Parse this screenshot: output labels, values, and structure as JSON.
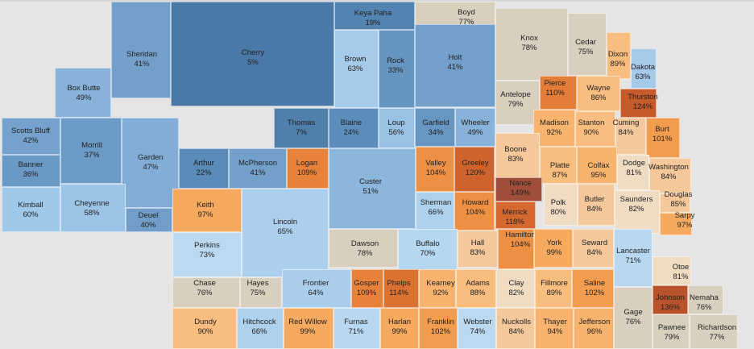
{
  "colors": {
    "b5": "#4a78a7",
    "b7": "#507fab",
    "b19": "#5383b0",
    "b22": "#5a8ab8",
    "b24": "#5d8dba",
    "b33": "#6695c2",
    "b34": "#6896c3",
    "b36": "#6b99c5",
    "b37": "#6d9bc7",
    "b40": "#709ec9",
    "b41": "#73a0cb",
    "b42": "#75a2cc",
    "b47": "#82add6",
    "b49": "#88b2da",
    "b51": "#8db6dc",
    "b56": "#98c1e3",
    "b58": "#9cc4e6",
    "b60": "#a0c8e8",
    "b63": "#a6cbea",
    "b64": "#a9cdeb",
    "b65": "#abcfec",
    "b66": "#aed1ed",
    "b70": "#b6d7f0",
    "b71": "#b8d8f1",
    "b73": "#bbdaf2",
    "g": "#d8cfbf",
    "o80": "#efdcc2",
    "o8384": "#f5c89b",
    "o8690": "#f8bd7f",
    "o9296": "#f8b46f",
    "o9799": "#f6aa5f",
    "o100": "#f29c4f",
    "o104": "#ee9044",
    "o109": "#e8823a",
    "o110": "#e47d38",
    "o114": "#dc7232",
    "o118": "#d4682f",
    "o120": "#cf632d",
    "o124": "#c65a2a",
    "o136": "#b9532b",
    "o149": "#a04d3a"
  },
  "counties": [
    {
      "name": "Keya Paha",
      "pct": "19%",
      "fill": "b19"
    },
    {
      "name": "Boyd",
      "pct": "77%",
      "fill": "g"
    },
    {
      "name": "Sheridan",
      "pct": "41%",
      "fill": "b41"
    },
    {
      "name": "Cherry",
      "pct": "5%",
      "fill": "b5"
    },
    {
      "name": "Brown",
      "pct": "63%",
      "fill": "b63"
    },
    {
      "name": "Rock",
      "pct": "33%",
      "fill": "b33"
    },
    {
      "name": "Holt",
      "pct": "41%",
      "fill": "b41"
    },
    {
      "name": "Knox",
      "pct": "78%",
      "fill": "g"
    },
    {
      "name": "Cedar",
      "pct": "75%",
      "fill": "g"
    },
    {
      "name": "Dixon",
      "pct": "89%",
      "fill": "o8690"
    },
    {
      "name": "Dakota",
      "pct": "63%",
      "fill": "b63"
    },
    {
      "name": "Box Butte",
      "pct": "49%",
      "fill": "b49"
    },
    {
      "name": "Antelope",
      "pct": "79%",
      "fill": "g"
    },
    {
      "name": "Pierce",
      "pct": "110%",
      "fill": "o110"
    },
    {
      "name": "Wayne",
      "pct": "86%",
      "fill": "o8690"
    },
    {
      "name": "Thurston",
      "pct": "124%",
      "fill": "o124"
    },
    {
      "name": "Scotts Bluff",
      "pct": "42%",
      "fill": "b42"
    },
    {
      "name": "Morrill",
      "pct": "37%",
      "fill": "b37"
    },
    {
      "name": "Garden",
      "pct": "47%",
      "fill": "b47"
    },
    {
      "name": "Thomas",
      "pct": "7%",
      "fill": "b7"
    },
    {
      "name": "Blaine",
      "pct": "24%",
      "fill": "b24"
    },
    {
      "name": "Loup",
      "pct": "56%",
      "fill": "b56"
    },
    {
      "name": "Garfield",
      "pct": "34%",
      "fill": "b34"
    },
    {
      "name": "Wheeler",
      "pct": "49%",
      "fill": "b49"
    },
    {
      "name": "Madison",
      "pct": "92%",
      "fill": "o9296"
    },
    {
      "name": "Stanton",
      "pct": "90%",
      "fill": "o8690"
    },
    {
      "name": "Cuming",
      "pct": "84%",
      "fill": "o8384"
    },
    {
      "name": "Burt",
      "pct": "101%",
      "fill": "o100"
    },
    {
      "name": "Banner",
      "pct": "36%",
      "fill": "b36"
    },
    {
      "name": "Arthur",
      "pct": "22%",
      "fill": "b22"
    },
    {
      "name": "McPherson",
      "pct": "41%",
      "fill": "b41"
    },
    {
      "name": "Logan",
      "pct": "109%",
      "fill": "o109"
    },
    {
      "name": "Custer",
      "pct": "51%",
      "fill": "b51"
    },
    {
      "name": "Valley",
      "pct": "104%",
      "fill": "o104"
    },
    {
      "name": "Greeley",
      "pct": "120%",
      "fill": "o120"
    },
    {
      "name": "Boone",
      "pct": "83%",
      "fill": "o8384"
    },
    {
      "name": "Platte",
      "pct": "87%",
      "fill": "o8690"
    },
    {
      "name": "Colfax",
      "pct": "95%",
      "fill": "o9296"
    },
    {
      "name": "Dodge",
      "pct": "81%",
      "fill": "o80"
    },
    {
      "name": "Washington",
      "pct": "84%",
      "fill": "o8384"
    },
    {
      "name": "Kimball",
      "pct": "60%",
      "fill": "b60"
    },
    {
      "name": "Cheyenne",
      "pct": "58%",
      "fill": "b58"
    },
    {
      "name": "Deuel",
      "pct": "40%",
      "fill": "b40"
    },
    {
      "name": "Keith",
      "pct": "97%",
      "fill": "o9799"
    },
    {
      "name": "Lincoln",
      "pct": "65%",
      "fill": "b65"
    },
    {
      "name": "Sherman",
      "pct": "66%",
      "fill": "b66"
    },
    {
      "name": "Howard",
      "pct": "104%",
      "fill": "o104"
    },
    {
      "name": "Nance",
      "pct": "149%",
      "fill": "o149"
    },
    {
      "name": "Merrick",
      "pct": "118%",
      "fill": "o118"
    },
    {
      "name": "Polk",
      "pct": "80%",
      "fill": "o80"
    },
    {
      "name": "Butler",
      "pct": "84%",
      "fill": "o8384"
    },
    {
      "name": "Saunders",
      "pct": "82%",
      "fill": "o80"
    },
    {
      "name": "Douglas",
      "pct": "85%",
      "fill": "o8384"
    },
    {
      "name": "Sarpy",
      "pct": "97%",
      "fill": "o9799"
    },
    {
      "name": "Perkins",
      "pct": "73%",
      "fill": "b73"
    },
    {
      "name": "Dawson",
      "pct": "78%",
      "fill": "g"
    },
    {
      "name": "Buffalo",
      "pct": "70%",
      "fill": "b70"
    },
    {
      "name": "Hall",
      "pct": "83%",
      "fill": "o8384"
    },
    {
      "name": "Hamilton",
      "pct": "104%",
      "fill": "o104"
    },
    {
      "name": "York",
      "pct": "99%",
      "fill": "o9799"
    },
    {
      "name": "Seward",
      "pct": "84%",
      "fill": "o8384"
    },
    {
      "name": "Lancaster",
      "pct": "71%",
      "fill": "b71"
    },
    {
      "name": "Otoe",
      "pct": "81%",
      "fill": "o80"
    },
    {
      "name": "Chase",
      "pct": "76%",
      "fill": "g"
    },
    {
      "name": "Hayes",
      "pct": "75%",
      "fill": "g"
    },
    {
      "name": "Frontier",
      "pct": "64%",
      "fill": "b64"
    },
    {
      "name": "Gosper",
      "pct": "109%",
      "fill": "o109"
    },
    {
      "name": "Phelps",
      "pct": "114%",
      "fill": "o114"
    },
    {
      "name": "Kearney",
      "pct": "92%",
      "fill": "o9296"
    },
    {
      "name": "Adams",
      "pct": "88%",
      "fill": "o8690"
    },
    {
      "name": "Clay",
      "pct": "82%",
      "fill": "o80"
    },
    {
      "name": "Fillmore",
      "pct": "89%",
      "fill": "o8690"
    },
    {
      "name": "Saline",
      "pct": "102%",
      "fill": "o100"
    },
    {
      "name": "Johnson",
      "pct": "136%",
      "fill": "o136"
    },
    {
      "name": "Nemaha",
      "pct": "76%",
      "fill": "g"
    },
    {
      "name": "Dundy",
      "pct": "90%",
      "fill": "o8690"
    },
    {
      "name": "Hitchcock",
      "pct": "66%",
      "fill": "b66"
    },
    {
      "name": "Red Willow",
      "pct": "99%",
      "fill": "o9799"
    },
    {
      "name": "Furnas",
      "pct": "71%",
      "fill": "b71"
    },
    {
      "name": "Harlan",
      "pct": "99%",
      "fill": "o9799"
    },
    {
      "name": "Franklin",
      "pct": "102%",
      "fill": "o100"
    },
    {
      "name": "Webster",
      "pct": "74%",
      "fill": "b73"
    },
    {
      "name": "Nuckolls",
      "pct": "84%",
      "fill": "o8384"
    },
    {
      "name": "Thayer",
      "pct": "94%",
      "fill": "o9296"
    },
    {
      "name": "Jefferson",
      "pct": "96%",
      "fill": "o9296"
    },
    {
      "name": "Gage",
      "pct": "76%",
      "fill": "g"
    },
    {
      "name": "Pawnee",
      "pct": "79%",
      "fill": "g"
    },
    {
      "name": "Richardson",
      "pct": "77%",
      "fill": "g"
    }
  ]
}
